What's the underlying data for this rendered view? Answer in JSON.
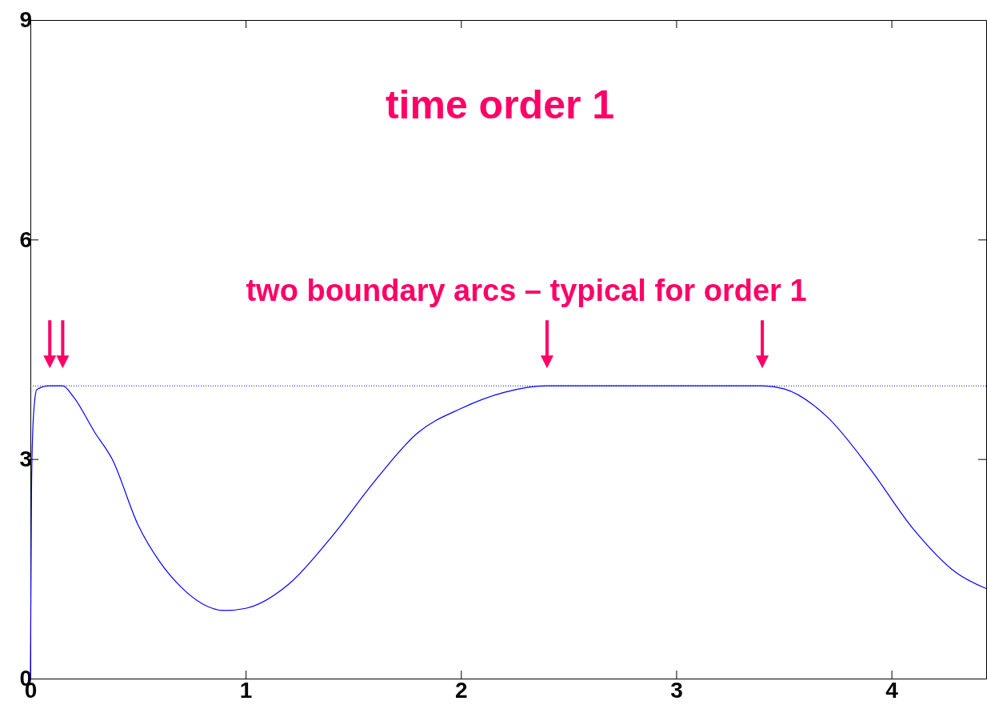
{
  "chart_data": {
    "type": "line",
    "title": "time order 1",
    "annotations": [
      "two boundary arcs – typical for order 1"
    ],
    "x": [
      0,
      0.005,
      0.01,
      0.02,
      0.03,
      0.09,
      0.15,
      0.2,
      0.3,
      0.38,
      0.5,
      0.6,
      0.7,
      0.8,
      0.9,
      1.0,
      1.2,
      1.4,
      1.6,
      1.8,
      2.0,
      2.2,
      2.4,
      2.7,
      3.0,
      3.4,
      3.5,
      3.7,
      3.9,
      4.1,
      4.3,
      4.44
    ],
    "series": [
      {
        "color": "#0000ff",
        "values": [
          0,
          2.5,
          3.3,
          3.8,
          3.95,
          4,
          4,
          3.85,
          3.36,
          3.0,
          2.1,
          1.6,
          1.25,
          1.02,
          0.93,
          0.96,
          1.29,
          1.94,
          2.7,
          3.36,
          3.69,
          3.91,
          4,
          4,
          4,
          4,
          3.96,
          3.58,
          2.87,
          2.05,
          1.45,
          1.23
        ]
      }
    ],
    "xlim": [
      0,
      4.44
    ],
    "xticks": [
      0,
      1,
      2,
      3,
      4
    ],
    "ylim": [
      0,
      9
    ],
    "yticks": [
      0,
      3,
      6,
      9
    ],
    "grid": false,
    "ref_lines": [
      {
        "axis": "y",
        "value": 4,
        "color": "#0000ff",
        "line_style": "dotted"
      }
    ]
  }
}
